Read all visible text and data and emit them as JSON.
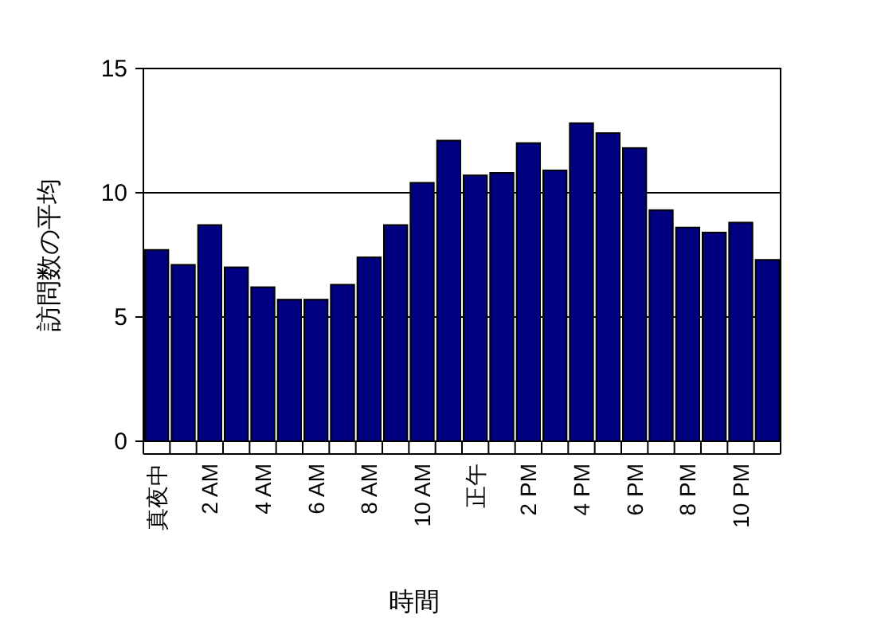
{
  "chart_data": {
    "type": "bar",
    "xlabel": "時間",
    "ylabel": "訪問数の平均",
    "categories": [
      "真夜中",
      null,
      "2 AM",
      null,
      "4 AM",
      null,
      "6 AM",
      null,
      "8 AM",
      null,
      "10 AM",
      null,
      "正午",
      null,
      "2 PM",
      null,
      "4 PM",
      null,
      "6 PM",
      null,
      "8 PM",
      null,
      "10 PM",
      null
    ],
    "values": [
      7.7,
      7.1,
      8.7,
      7.0,
      6.2,
      5.7,
      5.7,
      6.3,
      7.4,
      8.7,
      10.4,
      12.1,
      10.7,
      10.8,
      12.0,
      10.9,
      12.8,
      12.4,
      11.8,
      9.3,
      8.6,
      8.4,
      8.8,
      7.3
    ],
    "color": "#000080",
    "ylim": [
      0,
      15
    ],
    "yticks": [
      0,
      5,
      10,
      15
    ],
    "grid": "y"
  }
}
